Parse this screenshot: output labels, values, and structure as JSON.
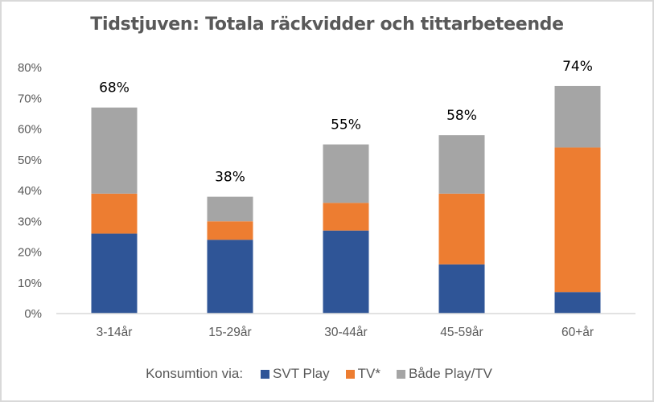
{
  "chart_data": {
    "type": "bar",
    "stacked": true,
    "title": "Tidstjuven: Totala räckvidder och tittarbeteende",
    "xlabel": "",
    "ylabel": "",
    "ylim": [
      0,
      80
    ],
    "yticks": [
      0,
      10,
      20,
      30,
      40,
      50,
      60,
      70,
      80
    ],
    "ytick_labels": [
      "0%",
      "10%",
      "20%",
      "30%",
      "40%",
      "50%",
      "60%",
      "70%",
      "80%"
    ],
    "grid": false,
    "categories": [
      "3-14år",
      "15-29år",
      "30-44år",
      "45-59år",
      "60+år"
    ],
    "series": [
      {
        "name": "SVT Play",
        "color": "#2f5597",
        "values": [
          26,
          24,
          27,
          16,
          7
        ]
      },
      {
        "name": "TV*",
        "color": "#ed7d31",
        "values": [
          13,
          6,
          9,
          23,
          47
        ]
      },
      {
        "name": "Både Play/TV",
        "color": "#a5a5a5",
        "values": [
          28,
          8,
          19,
          19,
          20
        ]
      }
    ],
    "total_labels": [
      "68%",
      "38%",
      "55%",
      "58%",
      "74%"
    ],
    "legend": {
      "position": "bottom",
      "prefix": "Konsumtion via:"
    }
  }
}
